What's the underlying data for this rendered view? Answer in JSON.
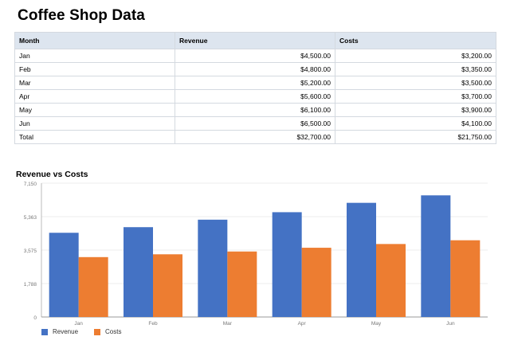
{
  "page": {
    "title": "Coffee Shop Data"
  },
  "table": {
    "headers": [
      "Month",
      "Revenue",
      "Costs"
    ],
    "rows": [
      [
        "Jan",
        "$4,500.00",
        "$3,200.00"
      ],
      [
        "Feb",
        "$4,800.00",
        "$3,350.00"
      ],
      [
        "Mar",
        "$5,200.00",
        "$3,500.00"
      ],
      [
        "Apr",
        "$5,600.00",
        "$3,700.00"
      ],
      [
        "May",
        "$6,100.00",
        "$3,900.00"
      ],
      [
        "Jun",
        "$6,500.00",
        "$4,100.00"
      ],
      [
        "Total",
        "$32,700.00",
        "$21,750.00"
      ]
    ]
  },
  "chart_data": {
    "type": "bar",
    "title": "Revenue vs Costs",
    "categories": [
      "Jan",
      "Feb",
      "Mar",
      "Apr",
      "May",
      "Jun"
    ],
    "series": [
      {
        "name": "Revenue",
        "values": [
          4500,
          4800,
          5200,
          5600,
          6100,
          6500
        ],
        "color": "#4472c4"
      },
      {
        "name": "Costs",
        "values": [
          3200,
          3350,
          3500,
          3700,
          3900,
          4100
        ],
        "color": "#ed7d31"
      }
    ],
    "yticks": [
      "0",
      "1,788",
      "3,575",
      "5,363",
      "7,150"
    ],
    "ylim": [
      0,
      7150
    ],
    "xlabel": "",
    "ylabel": "",
    "grid": true,
    "legend": "bottom-left"
  }
}
